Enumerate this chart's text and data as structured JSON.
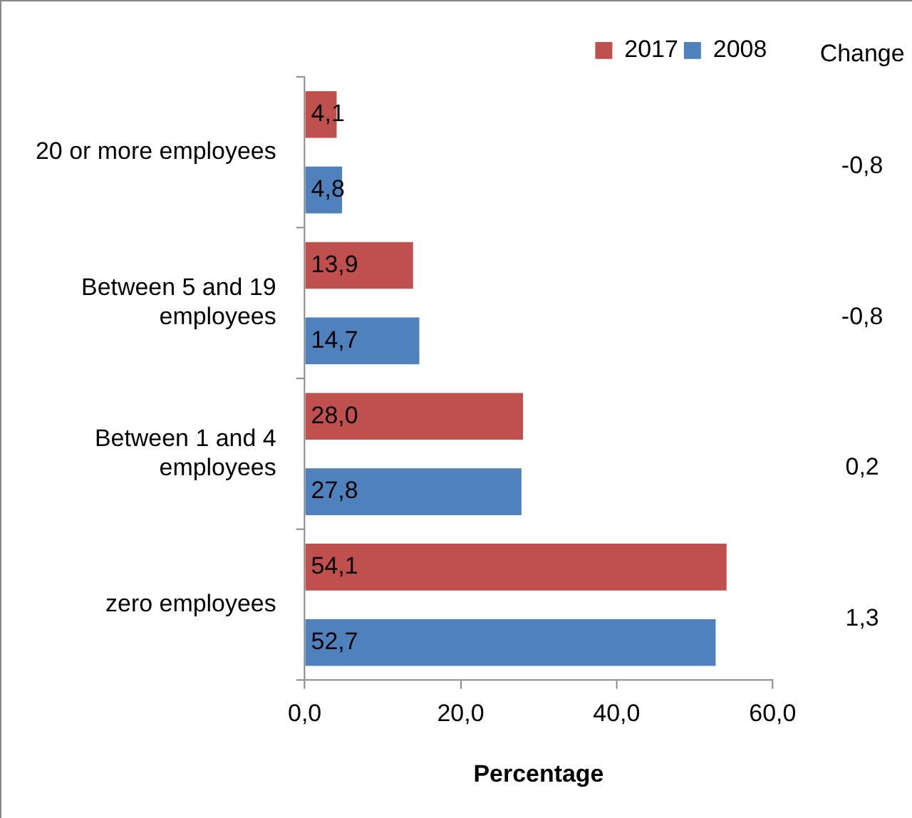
{
  "chart_data": {
    "type": "bar",
    "orientation": "horizontal",
    "xlabel": "Percentage",
    "categories": [
      "20 or more employees",
      "Between 5 and 19 employees",
      "Between 1 and 4 employees",
      "zero employees"
    ],
    "series": [
      {
        "name": "2017",
        "color": "#c0504d",
        "values": [
          4.1,
          13.9,
          28.0,
          54.1
        ],
        "value_labels": [
          "4,1",
          "13,9",
          "28,0",
          "54,1"
        ]
      },
      {
        "name": "2008",
        "color": "#4f81bd",
        "values": [
          4.8,
          14.7,
          27.8,
          52.7
        ],
        "value_labels": [
          "4,8",
          "14,7",
          "27,8",
          "52,7"
        ]
      }
    ],
    "xlim": [
      0,
      60
    ],
    "xticks": [
      {
        "value": 0,
        "label": "0,0"
      },
      {
        "value": 20,
        "label": "20,0"
      },
      {
        "value": 40,
        "label": "40,0"
      },
      {
        "value": 60,
        "label": "60,0"
      }
    ],
    "grid": false,
    "legend": "top right",
    "annotations": [
      "Change",
      "-0,8",
      "-0,8",
      "0,2",
      "1,3"
    ]
  }
}
